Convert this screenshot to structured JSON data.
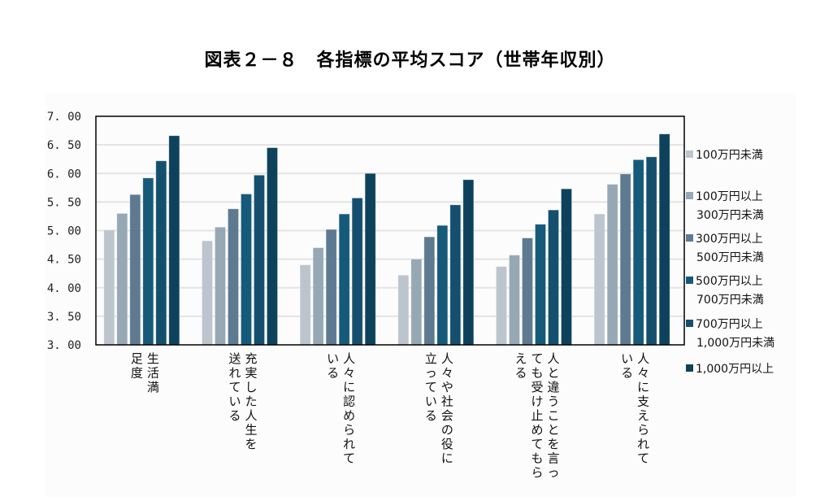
{
  "chart_data": {
    "type": "bar",
    "title": "図表２－８　各指標の平均スコア（世帯年収別）",
    "xlabel": "",
    "ylabel": "",
    "ylim": [
      3.0,
      7.0
    ],
    "yticks": [
      "3. 00",
      "3. 50",
      "4. 00",
      "4. 50",
      "5. 00",
      "5. 50",
      "6. 00",
      "6. 50",
      "7. 00"
    ],
    "ytick_values": [
      3.0,
      3.5,
      4.0,
      4.5,
      5.0,
      5.5,
      6.0,
      6.5,
      7.0
    ],
    "grid": true,
    "legend_position": "right",
    "categories": [
      [
        "生活満",
        "足度"
      ],
      [
        "充実した人生を",
        "送れている"
      ],
      [
        "人々に認められて",
        "いる"
      ],
      [
        "人々や社会の役に",
        "立っている"
      ],
      [
        "人と違うことを言っ",
        "ても受け止めてもら",
        "える"
      ],
      [
        "人々に支えられて",
        "いる"
      ]
    ],
    "category_names": [
      "生活満足度",
      "充実した人生を送れている",
      "人々に認められている",
      "人々や社会の役に立っている",
      "人と違うことを言っても受け止めてもらえる",
      "人々に支えられている"
    ],
    "series": [
      {
        "name": "100万円未満",
        "legend_lines": [
          "100万円未満"
        ],
        "color": "#bcc5cd",
        "values": [
          5.01,
          4.82,
          4.4,
          4.22,
          4.37,
          5.29
        ]
      },
      {
        "name": "100万円以上300万円未満",
        "legend_lines": [
          "100万円以上",
          "300万円未満"
        ],
        "color": "#97a8b5",
        "values": [
          5.3,
          5.06,
          4.7,
          4.5,
          4.57,
          5.81
        ]
      },
      {
        "name": "300万円以上500万円未満",
        "legend_lines": [
          "300万円以上",
          "500万円未満"
        ],
        "color": "#5e7a91",
        "values": [
          5.63,
          5.38,
          5.02,
          4.89,
          4.87,
          5.99
        ]
      },
      {
        "name": "500万円以上700万円未満",
        "legend_lines": [
          "500万円以上",
          "700万円未満"
        ],
        "color": "#165a7a",
        "values": [
          5.92,
          5.64,
          5.29,
          5.09,
          5.11,
          6.24
        ]
      },
      {
        "name": "700万円以上1,000万円未満",
        "legend_lines": [
          "700万円以上",
          "1,000万円未満"
        ],
        "color": "#14506d",
        "values": [
          6.22,
          5.97,
          5.57,
          5.45,
          5.36,
          6.29
        ]
      },
      {
        "name": "1,000万円以上",
        "legend_lines": [
          "1,000万円以上"
        ],
        "color": "#0e425c",
        "values": [
          6.66,
          6.45,
          6.0,
          5.89,
          5.73,
          6.69
        ]
      }
    ]
  }
}
